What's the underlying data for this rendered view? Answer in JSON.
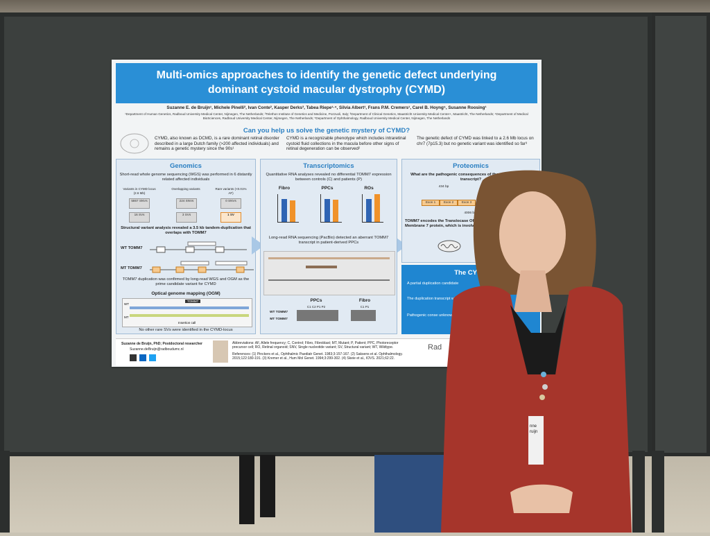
{
  "poster": {
    "title_line1": "Multi-omics approaches to identify the genetic defect underlying",
    "title_line2": "dominant cystoid macular dystrophy (CYMD)",
    "authors": "Suzanne E. de Bruijn¹, Michele Pinelli², Ivan Conte², Kasper Derks³, Tabea Riepe¹·⁴, Silvia Albert¹, Frans P.M. Cremers¹, Carel B. Hoyng⁵, Susanne Roosing¹",
    "affiliations": "¹Department of Human Genetics, Radboud University Medical Center, Nijmegen, The Netherlands; ²Telethon Institute of Genetics and Medicine, Pozzuoli, Italy; ³Department of Clinical Genetics, Maastricht University Medical Center+, Maastricht, The Netherlands; ⁴Department of Medical BioSciences, Radboud University Medical Center, Nijmegen, The Netherlands; ⁵Department of Ophthalmology, Radboud University Medical Center, Nijmegen, The Netherlands",
    "question": "Can you help us solve the genetic mystery of CYMD?",
    "intro": [
      "CYMD, also known as DCMD, is a rare dominant retinal disorder described in a large Dutch family (>200 affected individuals) and remains a genetic mystery since the 90s¹",
      "CYMD is a recognizable phenotype which includes intraretinal cystoid fluid collections in the macula before other signs of retinal degeneration can be observed²",
      "The genetic defect of CYMD was linked to a 2.6 Mb locus on chr7 (7p15.3) but no genetic variant was identified so far³"
    ],
    "genomics": {
      "title": "Genomics",
      "text1": "Short-read whole genome sequencing (WGS) was performed in 6 distantly related affected individuals",
      "col1": "Variants in CYMD locus (2.6 Mb)",
      "col2": "Overlapping variants",
      "col3": "Rare variants (<0.01% AF)",
      "snv": [
        "5867 SNVs",
        "224 SNVs",
        "0 SNVs"
      ],
      "sv": [
        "16 SVs",
        "3 SVs",
        "1 SV"
      ],
      "text2": "Structural variant analysis revealed a 3.5 kb tandem-duplication that overlaps with TOMM7",
      "wt_label": "WT TOMM7",
      "mt_label": "MT TOMM7",
      "kb": "3.5 kb",
      "text3": "TOMM7 duplication was confirmed by long-read WGS and OGM as the prime candidate variant for CYMD",
      "ogm_title": "Optical genome mapping (OGM)",
      "ogm_gene": "TOMM7",
      "ogm_wt": "WT",
      "ogm_mt": "MT",
      "insertion": "Insertion call",
      "text4": "No other rare SVs were identified in the CYMD-locus"
    },
    "transcriptomics": {
      "title": "Transcriptomics",
      "text1": "Quantitative RNA analyses revealed no differential TOMM7 expression between controls (C) and patients (P)",
      "charts": [
        "Fibro",
        "PPCs",
        "ROs"
      ],
      "text2": "Long-read RNA sequencing (PacBio) detected an aberrant TOMM7 transcript in patient-derived PPCs",
      "ppcs": "PPCs",
      "fibro": "Fibro",
      "lanes": "C1 C2 P1 P2",
      "lanes2": "C1 P1",
      "wt_row": "WT TOMM7",
      "mt_row": "MT TOMM7"
    },
    "proteomics": {
      "title": "Proteomics",
      "text1": "What are the pathogenic consequences of the aberrant TOMM7 transcript?",
      "bp1": "434 bp",
      "bp2": "4006 bp",
      "exons": [
        "Exon 1",
        "Exon 2",
        "Exon 3"
      ],
      "text2": "TOMM7 encodes the Translocase Of Outer Membrane 7 protein, which is involved"
    },
    "cymd_box": {
      "title": "The CYMD",
      "b1": "A partial duplication candidate",
      "b2": "The duplication transcript which",
      "b3": "Pathogenic conse unknown and"
    },
    "footer": {
      "name": "Suzanne de Bruijn, PhD; Postdoctoral researcher",
      "email": "Suzanne.deBruijn@radboudumc.nl",
      "abbrev": "Abbreviations: AF, Allele frequency; C, Control; Fibro, Fibroblast; MT, Mutant; P, Patient; PPC, Photoreceptor precursor cell; RO, Retinal organoid; SNV, Single nucleotide variant; SV, Structural variant; WT, Wildtype.",
      "refs": "References: (1) Pinckers et al., Ophthalmic Paediatr Genet. 1983;3:157-167. (2) Saksens et al. Ophthalmology. 2015;122:180-191. (3) Kremer et al., Hum Mol Genet. 1994;3:299-302. (4) Skeie et al., IOVS. 2021;62:22.",
      "logo": "Rad"
    }
  },
  "badge": {
    "line1": "nne",
    "line2": "ruijn"
  },
  "colors": {
    "banner": "#2a8fd6",
    "board": "#3c403e",
    "jacket": "#a6352b"
  }
}
